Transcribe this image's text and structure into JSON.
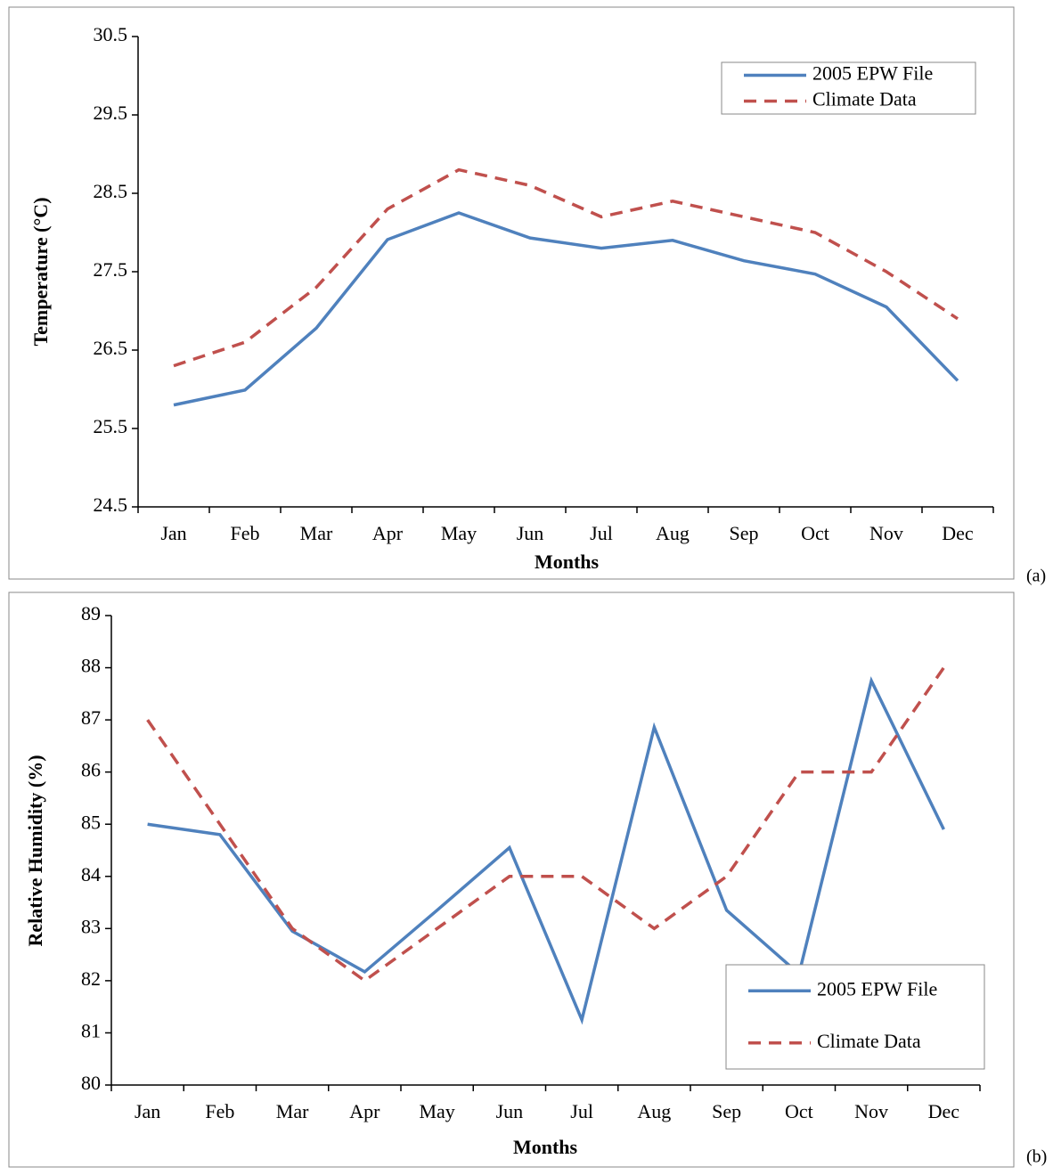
{
  "chart_data": [
    {
      "type": "line",
      "panel_label": "(a)",
      "xlabel": "Months",
      "ylabel": "Temperature (°C)",
      "categories": [
        "Jan",
        "Feb",
        "Mar",
        "Apr",
        "May",
        "Jun",
        "Jul",
        "Aug",
        "Sep",
        "Oct",
        "Nov",
        "Dec"
      ],
      "series": [
        {
          "name": "2005 EPW File",
          "color": "#4f81bd",
          "dash": false,
          "values": [
            25.8,
            25.99,
            26.78,
            27.91,
            28.25,
            27.93,
            27.8,
            27.9,
            27.64,
            27.47,
            27.05,
            26.11
          ]
        },
        {
          "name": "Climate Data",
          "color": "#c0504d",
          "dash": true,
          "values": [
            26.3,
            26.6,
            27.3,
            28.3,
            28.8,
            28.6,
            28.2,
            28.4,
            28.2,
            28.0,
            27.5,
            26.9
          ]
        }
      ],
      "ylim": [
        24.5,
        30.5
      ],
      "yticks": [
        24.5,
        25.5,
        26.5,
        27.5,
        28.5,
        29.5,
        30.5
      ],
      "legend": "upper right",
      "grid": false
    },
    {
      "type": "line",
      "panel_label": "(b)",
      "xlabel": "Months",
      "ylabel": "Relative Humidity (%)",
      "categories": [
        "Jan",
        "Feb",
        "Mar",
        "Apr",
        "May",
        "Jun",
        "Jul",
        "Aug",
        "Sep",
        "Oct",
        "Nov",
        "Dec"
      ],
      "series": [
        {
          "name": "2005 EPW File",
          "color": "#4f81bd",
          "dash": false,
          "values": [
            85.0,
            84.8,
            82.95,
            82.17,
            83.35,
            84.55,
            81.25,
            86.86,
            83.35,
            82.13,
            87.75,
            84.9
          ]
        },
        {
          "name": "Climate Data",
          "color": "#c0504d",
          "dash": true,
          "values": [
            87,
            85,
            83,
            82,
            83,
            84,
            84,
            83,
            84,
            86,
            86,
            88
          ]
        }
      ],
      "ylim": [
        80,
        89
      ],
      "yticks": [
        80,
        81,
        82,
        83,
        84,
        85,
        86,
        87,
        88,
        89
      ],
      "legend": "lower right",
      "grid": false
    }
  ]
}
